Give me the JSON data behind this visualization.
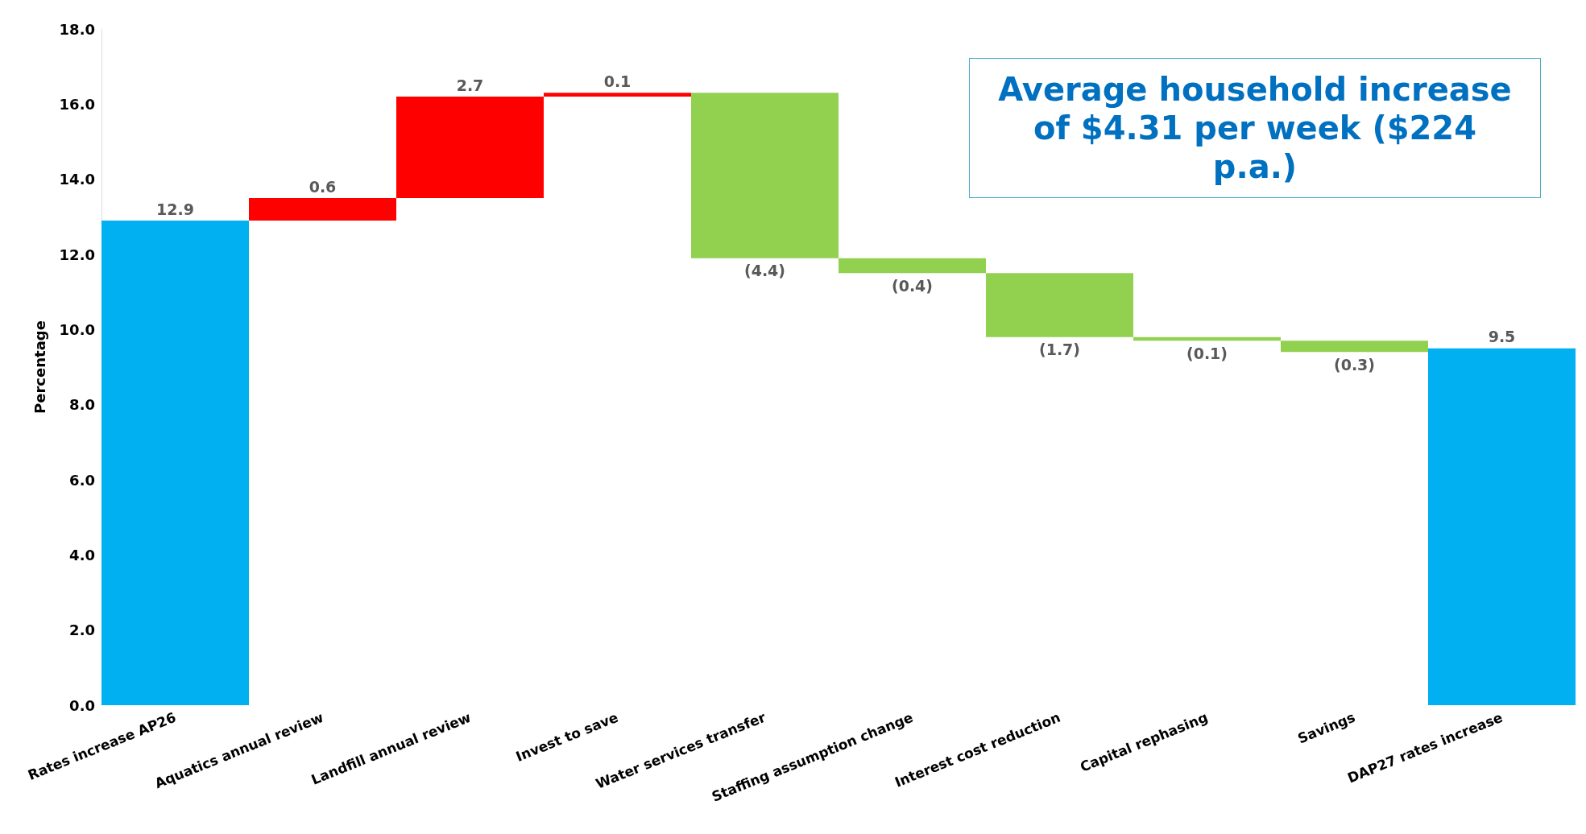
{
  "chart_data": {
    "type": "bar",
    "ylabel": "Percentage",
    "categories": [
      "Rates increase AP26",
      "Aquatics annual review",
      "Landfill annual review",
      "Invest to save",
      "Water services transfer",
      "Staffing assumption change",
      "Interest cost reduction",
      "Capital rephasing",
      "Savings",
      "DAP27 rates increase"
    ],
    "values": [
      12.9,
      0.6,
      2.7,
      0.1,
      -4.4,
      -0.4,
      -1.7,
      -0.1,
      -0.3,
      9.5
    ],
    "base": [
      0,
      12.9,
      13.5,
      16.2,
      16.3,
      11.9,
      11.5,
      9.8,
      9.7,
      0
    ],
    "colors": [
      "#00b0f0",
      "#ff0000",
      "#ff0000",
      "#ff0000",
      "#92d050",
      "#92d050",
      "#92d050",
      "#92d050",
      "#92d050",
      "#00b0f0"
    ],
    "value_labels": [
      "12.9",
      "0.6",
      "2.7",
      "0.1",
      "(4.4)",
      "(0.4)",
      "(1.7)",
      "(0.1)",
      "(0.3)",
      "9.5"
    ],
    "ylim": [
      0,
      18
    ],
    "yticks": [
      {
        "value": 0,
        "label": "0.0"
      },
      {
        "value": 2,
        "label": "2.0"
      },
      {
        "value": 4,
        "label": "4.0"
      },
      {
        "value": 6,
        "label": "6.0"
      },
      {
        "value": 8,
        "label": "8.0"
      },
      {
        "value": 10,
        "label": "10.0"
      },
      {
        "value": 12,
        "label": "12.0"
      },
      {
        "value": 14,
        "label": "14.0"
      },
      {
        "value": 16,
        "label": "16.0"
      },
      {
        "value": 18,
        "label": "18.0"
      }
    ],
    "annotations": [
      "Average household increase of $4.31 per week ($224 p.a.)"
    ]
  }
}
